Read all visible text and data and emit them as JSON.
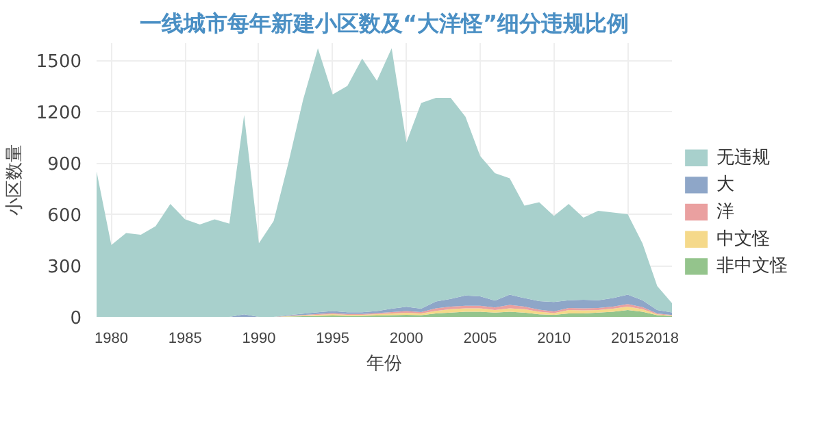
{
  "chart_data": {
    "type": "area",
    "stacked": true,
    "title": "一线城市每年新建小区数及“大洋怪”细分违规比例",
    "xlabel": "年份",
    "ylabel": "小区数量",
    "x": [
      1979,
      1980,
      1981,
      1982,
      1983,
      1984,
      1985,
      1986,
      1987,
      1988,
      1989,
      1990,
      1991,
      1992,
      1993,
      1994,
      1995,
      1996,
      1997,
      1998,
      1999,
      2000,
      2001,
      2002,
      2003,
      2004,
      2005,
      2006,
      2007,
      2008,
      2009,
      2010,
      2011,
      2012,
      2013,
      2014,
      2015,
      2016,
      2017,
      2018
    ],
    "series": [
      {
        "name": "非中文怪",
        "color": "#94c48c",
        "values": [
          0,
          0,
          0,
          0,
          0,
          0,
          0,
          0,
          0,
          0,
          0,
          0,
          0,
          2,
          4,
          6,
          8,
          6,
          6,
          8,
          10,
          12,
          10,
          20,
          25,
          30,
          30,
          25,
          30,
          25,
          15,
          12,
          20,
          20,
          25,
          30,
          40,
          30,
          10,
          5
        ]
      },
      {
        "name": "中文怪",
        "color": "#f5d98a",
        "values": [
          0,
          0,
          0,
          0,
          0,
          0,
          0,
          0,
          0,
          0,
          0,
          0,
          0,
          2,
          4,
          6,
          8,
          6,
          6,
          8,
          10,
          12,
          10,
          15,
          20,
          20,
          20,
          15,
          20,
          20,
          15,
          10,
          20,
          18,
          15,
          18,
          20,
          15,
          5,
          3
        ]
      },
      {
        "name": "洋",
        "color": "#eaa0a0",
        "values": [
          0,
          0,
          0,
          0,
          0,
          0,
          0,
          0,
          0,
          0,
          0,
          0,
          0,
          2,
          3,
          5,
          6,
          5,
          5,
          6,
          8,
          10,
          8,
          15,
          15,
          15,
          15,
          15,
          20,
          15,
          12,
          10,
          12,
          12,
          12,
          12,
          15,
          12,
          5,
          3
        ]
      },
      {
        "name": "大",
        "color": "#8ea6c8",
        "values": [
          0,
          0,
          0,
          0,
          0,
          0,
          0,
          0,
          0,
          0,
          15,
          0,
          0,
          4,
          8,
          10,
          12,
          10,
          10,
          12,
          20,
          25,
          20,
          40,
          45,
          60,
          55,
          40,
          60,
          50,
          50,
          55,
          45,
          50,
          45,
          50,
          55,
          40,
          20,
          15
        ]
      },
      {
        "name": "无违规",
        "color": "#a8d0cc",
        "values": [
          850,
          420,
          490,
          480,
          530,
          660,
          570,
          540,
          570,
          545,
          1165,
          430,
          560,
          890,
          1251,
          1543,
          1266,
          1323,
          1483,
          1346,
          1522,
          961,
          1202,
          1190,
          1175,
          1045,
          820,
          745,
          680,
          540,
          578,
          503,
          563,
          480,
          523,
          500,
          470,
          333,
          140,
          54
        ]
      }
    ],
    "xlim": [
      1979,
      2018
    ],
    "xticks": [
      1980,
      1985,
      1990,
      1995,
      2000,
      2005,
      2010,
      2015,
      2018
    ],
    "ylim": [
      0,
      1600
    ],
    "yticks": [
      0,
      300,
      600,
      900,
      1200,
      1500
    ],
    "grid": true,
    "legend": "right"
  }
}
